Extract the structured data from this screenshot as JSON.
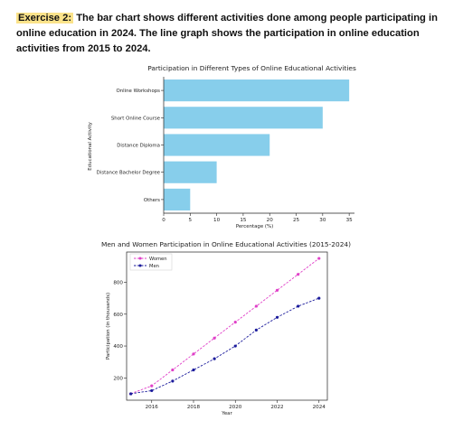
{
  "header": {
    "tag": "Exercise 2:",
    "text": "The bar chart shows different activities done among people participating in online education in 2024. The line graph shows the participation in online education activities from 2015 to 2024."
  },
  "chart_data": [
    {
      "type": "bar",
      "orientation": "horizontal",
      "title": "Participation in Different Types of Online Educational Activities",
      "xlabel": "Percentage (%)",
      "ylabel": "Educational Activity",
      "categories": [
        "Online Workshops",
        "Short Online Course",
        "Distance Diploma",
        "Distance Bachelor Degree",
        "Others"
      ],
      "values": [
        35,
        30,
        20,
        10,
        5
      ],
      "xlim": [
        0,
        36
      ],
      "xticks": [
        0,
        5,
        10,
        15,
        20,
        25,
        30,
        35
      ],
      "color": "#87ceeb",
      "grid": false
    },
    {
      "type": "line",
      "title": "Men and Women Participation in Online Educational Activities (2015-2024)",
      "xlabel": "Year",
      "ylabel": "Participation (in thousands)",
      "x": [
        2015,
        2016,
        2017,
        2018,
        2019,
        2020,
        2021,
        2022,
        2023,
        2024
      ],
      "series": [
        {
          "name": "Women",
          "color": "#e040c8",
          "values": [
            100,
            150,
            250,
            350,
            450,
            550,
            650,
            750,
            850,
            950
          ]
        },
        {
          "name": "Men",
          "color": "#1c1c9c",
          "values": [
            100,
            120,
            180,
            250,
            320,
            400,
            500,
            580,
            650,
            700
          ]
        }
      ],
      "xlim": [
        2014.8,
        2024.4
      ],
      "ylim": [
        60,
        990
      ],
      "xticks": [
        2016,
        2018,
        2020,
        2022,
        2024
      ],
      "yticks": [
        200,
        400,
        600,
        800
      ],
      "legend": "top-left",
      "grid": false
    }
  ]
}
